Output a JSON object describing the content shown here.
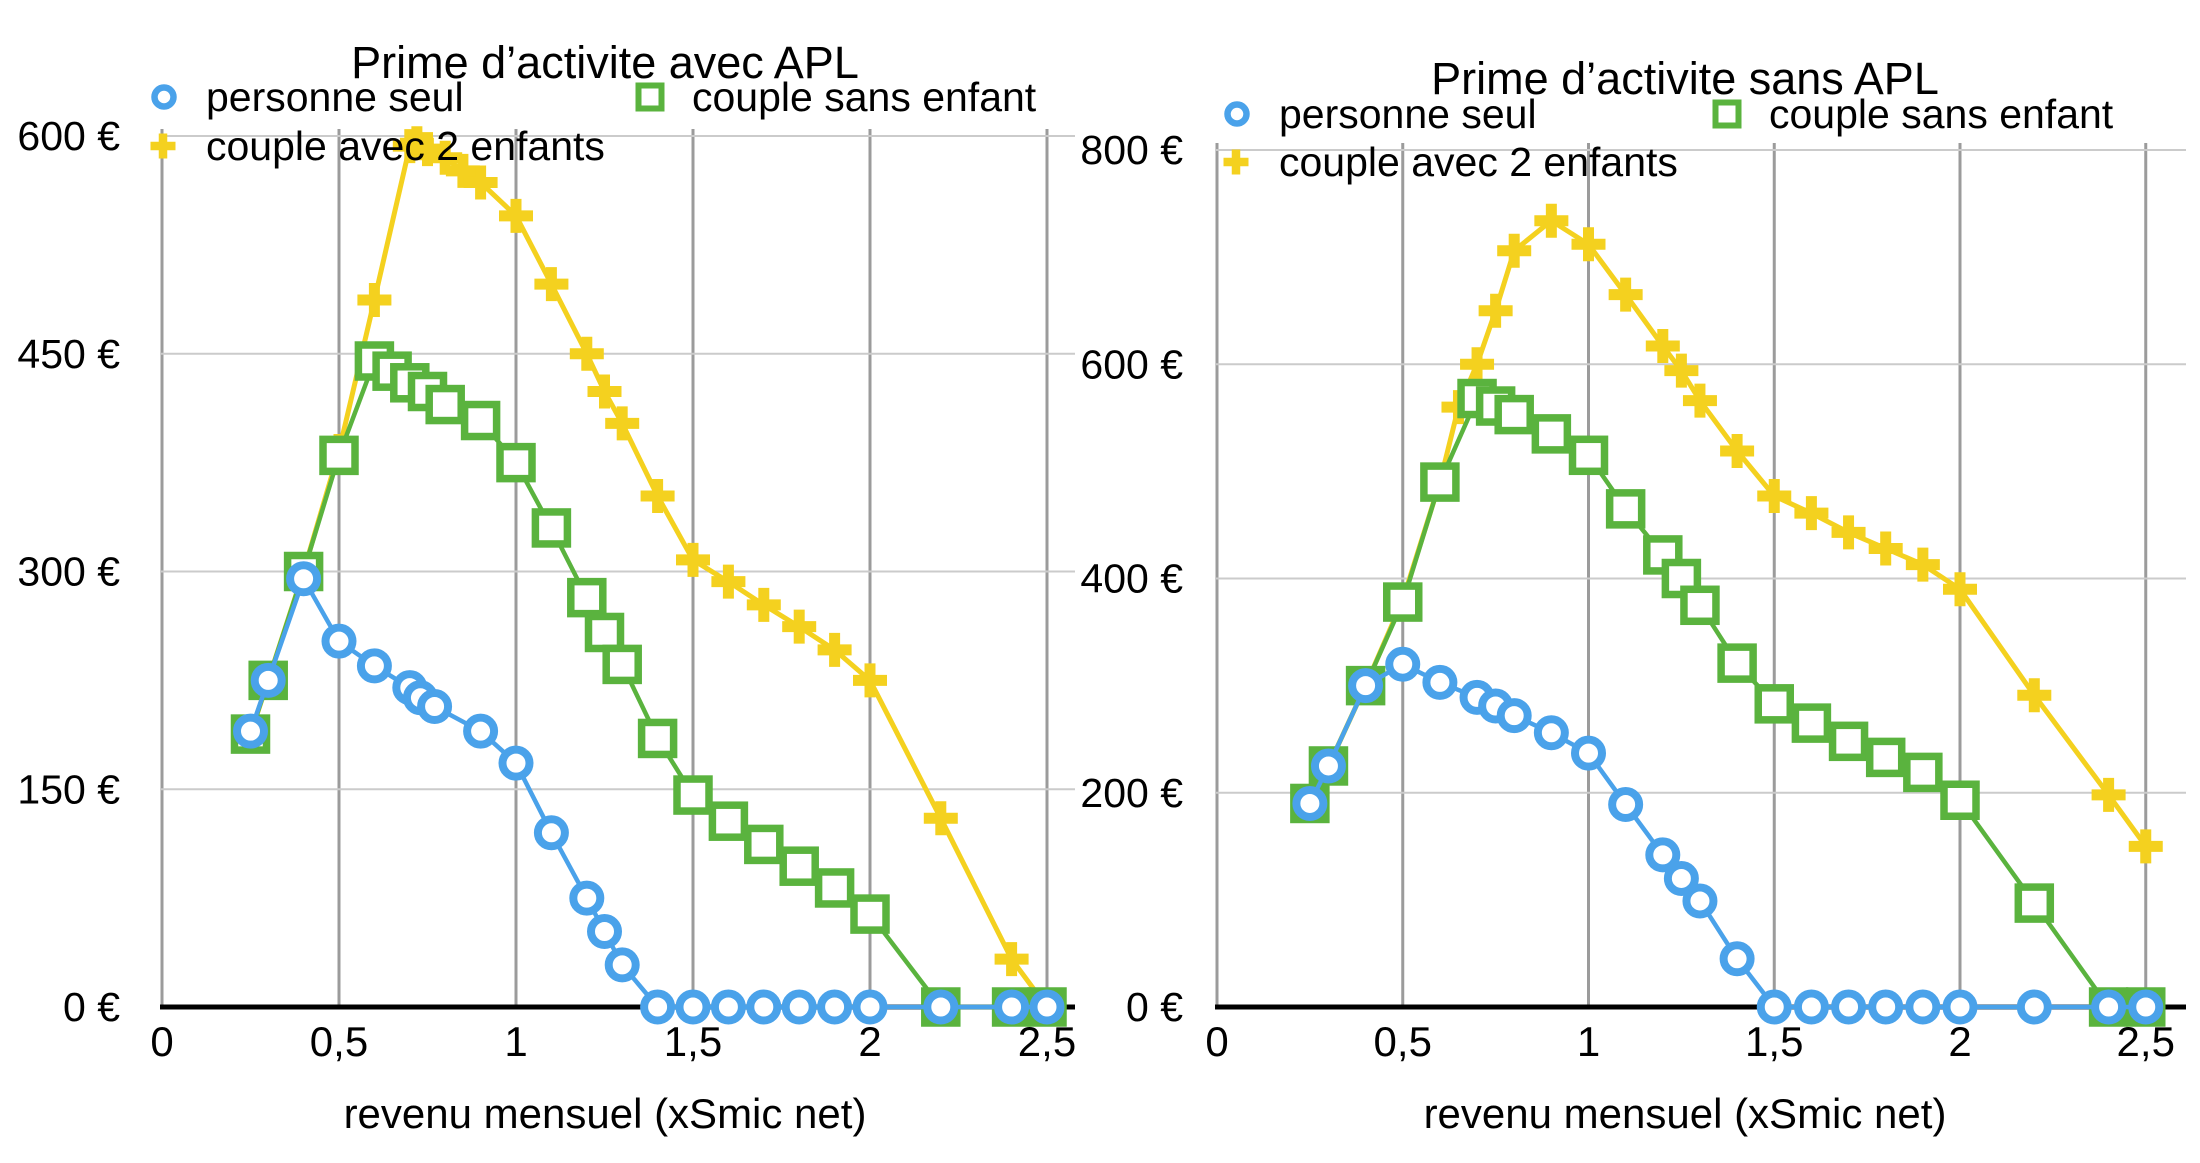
{
  "page": {
    "background": "#ffffff"
  },
  "colors": {
    "series_blue": "#4AA2EA",
    "series_green": "#5AB33E",
    "series_yellow": "#F4D11F",
    "vertical_grid": "#9B9B9B",
    "horizontal_grid": "#CBCBCB",
    "axis": "#000000",
    "text": "#000000"
  },
  "legend": {
    "items": [
      {
        "label": "personne seul",
        "marker": "circle-icon",
        "color": "#4AA2EA"
      },
      {
        "label": "couple sans enfant",
        "marker": "square-icon",
        "color": "#5AB33E"
      },
      {
        "label": "couple avec 2 enfants",
        "marker": "plus-icon",
        "color": "#F4D11F"
      }
    ]
  },
  "chart_data": [
    {
      "type": "line",
      "title": "Prime d’activite avec APL",
      "xlabel": "revenu mensuel (xSmic net)",
      "ylabel": "",
      "xlim": [
        0,
        2.5
      ],
      "ylim": [
        0,
        600
      ],
      "grid": true,
      "legend_position": "top",
      "x_tick_labels": [
        "0",
        "0,5",
        "1",
        "1,5",
        "2",
        "2,5"
      ],
      "x_tick_values": [
        0,
        0.5,
        1,
        1.5,
        2,
        2.5
      ],
      "y_tick_labels": [
        "0 €",
        "150 €",
        "300 €",
        "450 €",
        "600 €"
      ],
      "y_tick_values": [
        0,
        150,
        300,
        450,
        600
      ],
      "series": [
        {
          "name": "personne seul",
          "marker": "circle",
          "color": "#4AA2EA",
          "points": [
            [
              0.25,
              190
            ],
            [
              0.3,
              225
            ],
            [
              0.4,
              295
            ],
            [
              0.5,
              252
            ],
            [
              0.6,
              235
            ],
            [
              0.7,
              220
            ],
            [
              0.73,
              213
            ],
            [
              0.77,
              207
            ],
            [
              0.9,
              190
            ],
            [
              1.0,
              168
            ],
            [
              1.1,
              120
            ],
            [
              1.2,
              75
            ],
            [
              1.25,
              52
            ],
            [
              1.3,
              29
            ],
            [
              1.4,
              0
            ],
            [
              1.5,
              0
            ],
            [
              1.6,
              0
            ],
            [
              1.7,
              0
            ],
            [
              1.8,
              0
            ],
            [
              1.9,
              0
            ],
            [
              2.0,
              0
            ],
            [
              2.2,
              0
            ],
            [
              2.4,
              0
            ],
            [
              2.5,
              0
            ]
          ]
        },
        {
          "name": "couple sans enfant",
          "marker": "square",
          "color": "#5AB33E",
          "points": [
            [
              0.25,
              188
            ],
            [
              0.3,
              225
            ],
            [
              0.4,
              300
            ],
            [
              0.5,
              380
            ],
            [
              0.6,
              445
            ],
            [
              0.65,
              438
            ],
            [
              0.7,
              430
            ],
            [
              0.75,
              424
            ],
            [
              0.8,
              415
            ],
            [
              0.9,
              404
            ],
            [
              1.0,
              375
            ],
            [
              1.1,
              330
            ],
            [
              1.2,
              282
            ],
            [
              1.25,
              258
            ],
            [
              1.3,
              236
            ],
            [
              1.4,
              185
            ],
            [
              1.5,
              146
            ],
            [
              1.6,
              128
            ],
            [
              1.7,
              112
            ],
            [
              1.8,
              97
            ],
            [
              1.9,
              82
            ],
            [
              2.0,
              64
            ],
            [
              2.2,
              0
            ],
            [
              2.4,
              0
            ],
            [
              2.5,
              0
            ]
          ]
        },
        {
          "name": "couple avec 2 enfants",
          "marker": "plus",
          "color": "#F4D11F",
          "points": [
            [
              0.25,
              188
            ],
            [
              0.3,
              225
            ],
            [
              0.4,
              300
            ],
            [
              0.5,
              383
            ],
            [
              0.6,
              487
            ],
            [
              0.7,
              593
            ],
            [
              0.72,
              595
            ],
            [
              0.75,
              591
            ],
            [
              0.8,
              585
            ],
            [
              0.85,
              576
            ],
            [
              0.9,
              568
            ],
            [
              1.0,
              545
            ],
            [
              1.1,
              498
            ],
            [
              1.2,
              450
            ],
            [
              1.25,
              424
            ],
            [
              1.3,
              402
            ],
            [
              1.4,
              352
            ],
            [
              1.5,
              308
            ],
            [
              1.6,
              293
            ],
            [
              1.7,
              277
            ],
            [
              1.8,
              262
            ],
            [
              1.9,
              246
            ],
            [
              2.0,
              225
            ],
            [
              2.2,
              130
            ],
            [
              2.4,
              33
            ],
            [
              2.5,
              0
            ]
          ]
        }
      ]
    },
    {
      "type": "line",
      "title": "Prime d’activite sans APL",
      "xlabel": "revenu mensuel (xSmic net)",
      "ylabel": "",
      "xlim": [
        0,
        2.5
      ],
      "ylim": [
        0,
        800
      ],
      "grid": true,
      "legend_position": "top",
      "x_tick_labels": [
        "0",
        "0,5",
        "1",
        "1,5",
        "2",
        "2,5"
      ],
      "x_tick_values": [
        0,
        0.5,
        1,
        1.5,
        2,
        2.5
      ],
      "y_tick_labels": [
        "0 €",
        "200 €",
        "400 €",
        "600 €",
        "800 €"
      ],
      "y_tick_values": [
        0,
        200,
        400,
        600,
        800
      ],
      "series": [
        {
          "name": "personne seul",
          "marker": "circle",
          "color": "#4AA2EA",
          "points": [
            [
              0.25,
              190
            ],
            [
              0.3,
              225
            ],
            [
              0.4,
              300
            ],
            [
              0.5,
              320
            ],
            [
              0.6,
              303
            ],
            [
              0.7,
              289
            ],
            [
              0.75,
              281
            ],
            [
              0.8,
              272
            ],
            [
              0.9,
              256
            ],
            [
              1.0,
              237
            ],
            [
              1.1,
              189
            ],
            [
              1.2,
              142
            ],
            [
              1.25,
              120
            ],
            [
              1.3,
              99
            ],
            [
              1.4,
              45
            ],
            [
              1.5,
              0
            ],
            [
              1.6,
              0
            ],
            [
              1.7,
              0
            ],
            [
              1.8,
              0
            ],
            [
              1.9,
              0
            ],
            [
              2.0,
              0
            ],
            [
              2.2,
              0
            ],
            [
              2.4,
              0
            ],
            [
              2.5,
              0
            ]
          ]
        },
        {
          "name": "couple sans enfant",
          "marker": "square",
          "color": "#5AB33E",
          "points": [
            [
              0.25,
              190
            ],
            [
              0.3,
              225
            ],
            [
              0.4,
              300
            ],
            [
              0.5,
              378
            ],
            [
              0.6,
              490
            ],
            [
              0.7,
              568
            ],
            [
              0.75,
              561
            ],
            [
              0.8,
              553
            ],
            [
              0.9,
              535
            ],
            [
              1.0,
              515
            ],
            [
              1.1,
              465
            ],
            [
              1.2,
              422
            ],
            [
              1.25,
              400
            ],
            [
              1.3,
              375
            ],
            [
              1.4,
              321
            ],
            [
              1.5,
              283
            ],
            [
              1.6,
              265
            ],
            [
              1.7,
              248
            ],
            [
              1.8,
              233
            ],
            [
              1.9,
              219
            ],
            [
              2.0,
              193
            ],
            [
              2.2,
              97
            ],
            [
              2.4,
              0
            ],
            [
              2.5,
              0
            ]
          ]
        },
        {
          "name": "couple avec 2 enfants",
          "marker": "plus",
          "color": "#F4D11F",
          "points": [
            [
              0.25,
              190
            ],
            [
              0.3,
              225
            ],
            [
              0.4,
              300
            ],
            [
              0.5,
              380
            ],
            [
              0.6,
              490
            ],
            [
              0.65,
              560
            ],
            [
              0.7,
              600
            ],
            [
              0.75,
              650
            ],
            [
              0.8,
              706
            ],
            [
              0.9,
              734
            ],
            [
              1.0,
              712
            ],
            [
              1.1,
              665
            ],
            [
              1.2,
              617
            ],
            [
              1.25,
              594
            ],
            [
              1.3,
              566
            ],
            [
              1.4,
              519
            ],
            [
              1.5,
              477
            ],
            [
              1.6,
              461
            ],
            [
              1.7,
              443
            ],
            [
              1.8,
              428
            ],
            [
              1.9,
              413
            ],
            [
              2.0,
              390
            ],
            [
              2.2,
              291
            ],
            [
              2.4,
              198
            ],
            [
              2.5,
              150
            ]
          ]
        }
      ]
    }
  ]
}
